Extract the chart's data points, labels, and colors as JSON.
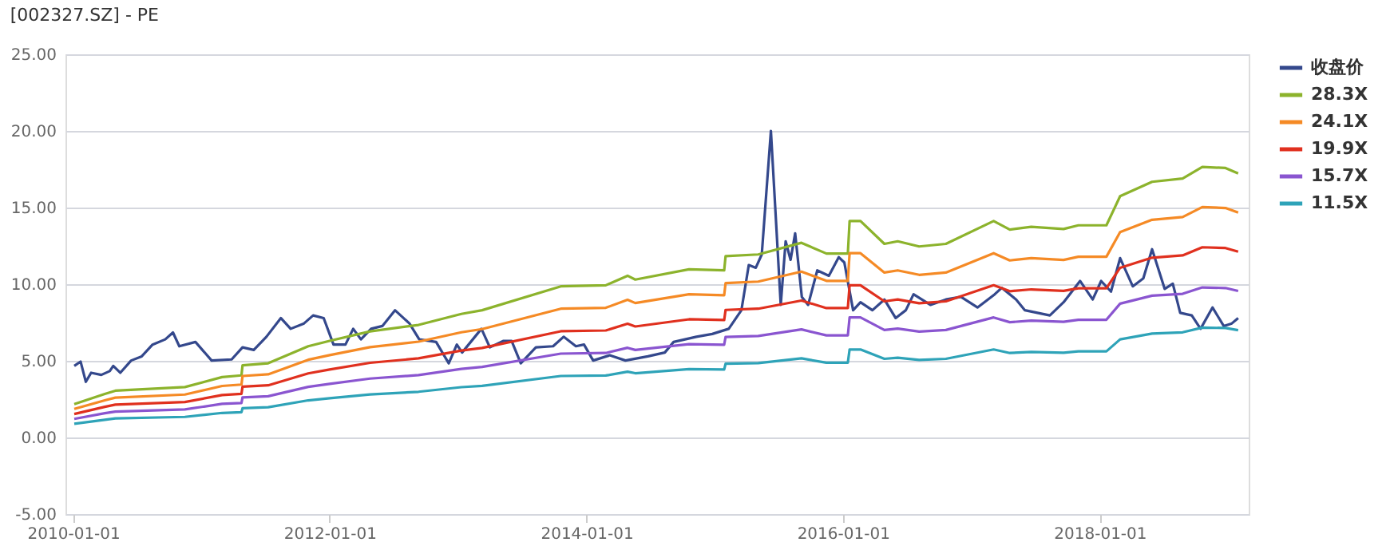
{
  "chart_data": {
    "type": "line",
    "title": "[002327.SZ] - PE",
    "xlim": [
      "2009-12-10",
      "2019-03-01"
    ],
    "xticks": [
      "2010-01-01",
      "2012-01-01",
      "2014-01-01",
      "2016-01-01",
      "2018-01-01"
    ],
    "ylim": [
      -5,
      25
    ],
    "yticks": [
      {
        "value": -5,
        "label": "-5.00"
      },
      {
        "value": 0,
        "label": "0.00"
      },
      {
        "value": 5,
        "label": "5.00"
      },
      {
        "value": 10,
        "label": "10.00"
      },
      {
        "value": 15,
        "label": "15.00"
      },
      {
        "value": 20,
        "label": "20.00"
      },
      {
        "value": 25,
        "label": "25.00"
      }
    ],
    "grid": "y",
    "legend": "right",
    "marker": "none",
    "line_style": "solid",
    "series": [
      {
        "name": "收盘价",
        "color": "#34488c",
        "x": [
          "2010-01-04",
          "2010-01-22",
          "2010-02-06",
          "2010-02-21",
          "2010-03-22",
          "2010-04-15",
          "2010-04-25",
          "2010-05-15",
          "2010-06-15",
          "2010-07-15",
          "2010-08-15",
          "2010-09-20",
          "2010-10-12",
          "2010-10-30",
          "2010-12-15",
          "2011-01-30",
          "2011-03-28",
          "2011-04-28",
          "2011-05-30",
          "2011-07-05",
          "2011-08-15",
          "2011-09-12",
          "2011-10-20",
          "2011-11-15",
          "2011-12-15",
          "2012-01-12",
          "2012-02-15",
          "2012-03-08",
          "2012-03-30",
          "2012-04-28",
          "2012-05-30",
          "2012-07-05",
          "2012-08-15",
          "2012-09-12",
          "2012-10-30",
          "2012-12-05",
          "2012-12-28",
          "2013-01-12",
          "2013-03-08",
          "2013-04-01",
          "2013-05-10",
          "2013-06-02",
          "2013-06-28",
          "2013-08-10",
          "2013-09-28",
          "2013-10-28",
          "2013-12-02",
          "2013-12-25",
          "2014-01-20",
          "2014-03-08",
          "2014-04-22",
          "2014-06-25",
          "2014-08-12",
          "2014-09-06",
          "2014-11-10",
          "2014-12-25",
          "2015-02-10",
          "2015-03-18",
          "2015-04-08",
          "2015-04-28",
          "2015-05-15",
          "2015-06-10",
          "2015-07-08",
          "2015-07-22",
          "2015-08-05",
          "2015-08-18",
          "2015-09-06",
          "2015-09-24",
          "2015-10-20",
          "2015-11-22",
          "2015-12-20",
          "2016-01-05",
          "2016-01-30",
          "2016-02-20",
          "2016-03-25",
          "2016-04-28",
          "2016-05-30",
          "2016-06-28",
          "2016-07-20",
          "2016-09-06",
          "2016-10-20",
          "2016-12-02",
          "2017-01-18",
          "2017-03-08",
          "2017-03-28",
          "2017-05-08",
          "2017-06-02",
          "2017-08-12",
          "2017-09-20",
          "2017-11-06",
          "2017-12-12",
          "2018-01-05",
          "2018-02-02",
          "2018-02-28",
          "2018-04-05",
          "2018-05-05",
          "2018-05-30",
          "2018-07-05",
          "2018-07-28",
          "2018-08-18",
          "2018-09-20",
          "2018-10-15",
          "2018-11-18",
          "2018-12-20",
          "2019-01-12",
          "2019-01-30"
        ],
        "values": [
          4.67,
          4.95,
          3.63,
          4.22,
          4.08,
          4.33,
          4.67,
          4.22,
          5.02,
          5.29,
          6.06,
          6.4,
          6.85,
          5.95,
          6.23,
          5.02,
          5.09,
          5.88,
          5.71,
          6.57,
          7.79,
          7.09,
          7.44,
          7.96,
          7.79,
          6.06,
          6.06,
          7.09,
          6.4,
          7.09,
          7.27,
          8.3,
          7.44,
          6.4,
          6.23,
          4.84,
          6.06,
          5.54,
          7.09,
          5.88,
          6.3,
          6.3,
          4.84,
          5.88,
          5.95,
          6.57,
          5.95,
          6.06,
          5.02,
          5.36,
          5.02,
          5.29,
          5.54,
          6.23,
          6.57,
          6.75,
          7.09,
          8.3,
          11.25,
          11.07,
          11.94,
          20.0,
          8.65,
          12.8,
          11.59,
          13.32,
          9.17,
          8.65,
          10.9,
          10.55,
          11.76,
          11.42,
          8.3,
          8.82,
          8.3,
          9.0,
          7.79,
          8.3,
          9.34,
          8.65,
          9.0,
          9.17,
          8.48,
          9.34,
          9.76,
          9.0,
          8.3,
          7.96,
          8.82,
          10.21,
          9.0,
          10.21,
          9.52,
          11.7,
          9.86,
          10.38,
          12.28,
          9.69,
          10.03,
          8.13,
          7.96,
          7.09,
          8.48,
          7.27,
          7.44,
          7.79
        ]
      },
      {
        "name": "28.3X",
        "color": "#8cb32c",
        "x": [
          "2010-01-04",
          "2010-04-01",
          "2010-05-01",
          "2010-11-15",
          "2011-03-01",
          "2011-04-25",
          "2011-04-28",
          "2011-07-10",
          "2011-11-01",
          "2012-01-01",
          "2012-04-25",
          "2012-09-10",
          "2013-01-10",
          "2013-03-10",
          "2013-10-20",
          "2014-02-25",
          "2014-04-28",
          "2014-05-20",
          "2014-10-20",
          "2015-01-28",
          "2015-02-01",
          "2015-05-05",
          "2015-09-05",
          "2015-11-15",
          "2016-01-15",
          "2016-01-20",
          "2016-02-20",
          "2016-04-28",
          "2016-06-05",
          "2016-08-05",
          "2016-10-20",
          "2017-03-05",
          "2017-04-20",
          "2017-06-20",
          "2017-09-20",
          "2017-11-01",
          "2018-01-20",
          "2018-02-28",
          "2018-05-30",
          "2018-08-25",
          "2018-10-20",
          "2018-12-25",
          "2019-01-30"
        ],
        "values": [
          2.18,
          2.84,
          3.05,
          3.29,
          3.94,
          4.05,
          4.71,
          4.84,
          5.95,
          6.3,
          6.92,
          7.34,
          8.06,
          8.3,
          9.86,
          9.93,
          10.55,
          10.3,
          10.97,
          10.9,
          11.83,
          11.94,
          12.7,
          12.0,
          12.0,
          14.12,
          14.12,
          12.63,
          12.8,
          12.46,
          12.63,
          14.12,
          13.56,
          13.74,
          13.6,
          13.84,
          13.84,
          15.74,
          16.68,
          16.89,
          17.65,
          17.58,
          17.23
        ]
      },
      {
        "name": "24.1X",
        "color": "#f58a25",
        "x": [
          "2010-01-04",
          "2010-04-01",
          "2010-05-01",
          "2010-11-15",
          "2011-03-01",
          "2011-04-25",
          "2011-04-28",
          "2011-07-10",
          "2011-11-01",
          "2012-01-01",
          "2012-04-25",
          "2012-09-10",
          "2013-01-10",
          "2013-03-10",
          "2013-10-20",
          "2014-02-25",
          "2014-04-28",
          "2014-05-20",
          "2014-10-20",
          "2015-01-28",
          "2015-02-01",
          "2015-05-05",
          "2015-09-05",
          "2015-11-15",
          "2016-01-15",
          "2016-01-20",
          "2016-02-20",
          "2016-04-28",
          "2016-06-05",
          "2016-08-05",
          "2016-10-20",
          "2017-03-05",
          "2017-04-20",
          "2017-06-20",
          "2017-09-20",
          "2017-11-01",
          "2018-01-20",
          "2018-02-28",
          "2018-05-30",
          "2018-08-25",
          "2018-10-20",
          "2018-12-25",
          "2019-01-30"
        ],
        "values": [
          1.86,
          2.42,
          2.6,
          2.8,
          3.36,
          3.45,
          4.01,
          4.12,
          5.07,
          5.37,
          5.89,
          6.25,
          6.86,
          7.07,
          8.4,
          8.46,
          8.98,
          8.77,
          9.34,
          9.28,
          10.07,
          10.17,
          10.82,
          10.22,
          10.22,
          12.02,
          12.02,
          10.76,
          10.9,
          10.61,
          10.76,
          12.02,
          11.55,
          11.7,
          11.58,
          11.79,
          11.79,
          13.4,
          14.2,
          14.38,
          15.03,
          14.97,
          14.67
        ]
      },
      {
        "name": "19.9X",
        "color": "#e0301e",
        "x": [
          "2010-01-04",
          "2010-04-01",
          "2010-05-01",
          "2010-11-15",
          "2011-03-01",
          "2011-04-25",
          "2011-04-28",
          "2011-07-10",
          "2011-11-01",
          "2012-01-01",
          "2012-04-25",
          "2012-09-10",
          "2013-01-10",
          "2013-03-10",
          "2013-10-20",
          "2014-02-25",
          "2014-04-28",
          "2014-05-20",
          "2014-10-20",
          "2015-01-28",
          "2015-02-01",
          "2015-05-05",
          "2015-09-05",
          "2015-11-15",
          "2016-01-15",
          "2016-01-20",
          "2016-02-20",
          "2016-04-28",
          "2016-06-05",
          "2016-08-05",
          "2016-10-20",
          "2017-03-05",
          "2017-04-20",
          "2017-06-20",
          "2017-09-20",
          "2017-11-01",
          "2018-01-20",
          "2018-02-28",
          "2018-05-30",
          "2018-08-25",
          "2018-10-20",
          "2018-12-25",
          "2019-01-30"
        ],
        "values": [
          1.53,
          2.0,
          2.14,
          2.31,
          2.77,
          2.85,
          3.31,
          3.4,
          4.18,
          4.43,
          4.87,
          5.16,
          5.67,
          5.84,
          6.93,
          6.98,
          7.42,
          7.24,
          7.71,
          7.66,
          8.32,
          8.4,
          8.93,
          8.44,
          8.44,
          9.93,
          9.93,
          8.88,
          9.0,
          8.76,
          8.88,
          9.93,
          9.54,
          9.66,
          9.56,
          9.73,
          9.73,
          11.07,
          11.73,
          11.88,
          12.41,
          12.36,
          12.12
        ]
      },
      {
        "name": "15.7X",
        "color": "#8a55d0",
        "x": [
          "2010-01-04",
          "2010-04-01",
          "2010-05-01",
          "2010-11-15",
          "2011-03-01",
          "2011-04-25",
          "2011-04-28",
          "2011-07-10",
          "2011-11-01",
          "2012-01-01",
          "2012-04-25",
          "2012-09-10",
          "2013-01-10",
          "2013-03-10",
          "2013-10-20",
          "2014-02-25",
          "2014-04-28",
          "2014-05-20",
          "2014-10-20",
          "2015-01-28",
          "2015-02-01",
          "2015-05-05",
          "2015-09-05",
          "2015-11-15",
          "2016-01-15",
          "2016-01-20",
          "2016-02-20",
          "2016-04-28",
          "2016-06-05",
          "2016-08-05",
          "2016-10-20",
          "2017-03-05",
          "2017-04-20",
          "2017-06-20",
          "2017-09-20",
          "2017-11-01",
          "2018-01-20",
          "2018-02-28",
          "2018-05-30",
          "2018-08-25",
          "2018-10-20",
          "2018-12-25",
          "2019-01-30"
        ],
        "values": [
          1.21,
          1.58,
          1.69,
          1.83,
          2.19,
          2.25,
          2.61,
          2.69,
          3.3,
          3.5,
          3.84,
          4.07,
          4.47,
          4.6,
          5.47,
          5.51,
          5.85,
          5.71,
          6.09,
          6.05,
          6.56,
          6.62,
          7.05,
          6.66,
          6.66,
          7.83,
          7.83,
          7.01,
          7.1,
          6.91,
          7.01,
          7.83,
          7.52,
          7.62,
          7.55,
          7.68,
          7.68,
          8.73,
          9.25,
          9.37,
          9.79,
          9.75,
          9.56
        ]
      },
      {
        "name": "11.5X",
        "color": "#2ea3b8",
        "x": [
          "2010-01-04",
          "2010-04-01",
          "2010-05-01",
          "2010-11-15",
          "2011-03-01",
          "2011-04-25",
          "2011-04-28",
          "2011-07-10",
          "2011-11-01",
          "2012-01-01",
          "2012-04-25",
          "2012-09-10",
          "2013-01-10",
          "2013-03-10",
          "2013-10-20",
          "2014-02-25",
          "2014-04-28",
          "2014-05-20",
          "2014-10-20",
          "2015-01-28",
          "2015-02-01",
          "2015-05-05",
          "2015-09-05",
          "2015-11-15",
          "2016-01-15",
          "2016-01-20",
          "2016-02-20",
          "2016-04-28",
          "2016-06-05",
          "2016-08-05",
          "2016-10-20",
          "2017-03-05",
          "2017-04-20",
          "2017-06-20",
          "2017-09-20",
          "2017-11-01",
          "2018-01-20",
          "2018-02-28",
          "2018-05-30",
          "2018-08-25",
          "2018-10-20",
          "2018-12-25",
          "2019-01-30"
        ],
        "values": [
          0.89,
          1.15,
          1.24,
          1.34,
          1.6,
          1.65,
          1.91,
          1.97,
          2.42,
          2.56,
          2.81,
          2.98,
          3.28,
          3.37,
          4.01,
          4.04,
          4.29,
          4.19,
          4.46,
          4.43,
          4.81,
          4.85,
          5.16,
          4.88,
          4.88,
          5.74,
          5.74,
          5.13,
          5.2,
          5.06,
          5.13,
          5.74,
          5.51,
          5.58,
          5.53,
          5.62,
          5.62,
          6.4,
          6.78,
          6.86,
          7.17,
          7.14,
          7.0
        ]
      }
    ]
  }
}
